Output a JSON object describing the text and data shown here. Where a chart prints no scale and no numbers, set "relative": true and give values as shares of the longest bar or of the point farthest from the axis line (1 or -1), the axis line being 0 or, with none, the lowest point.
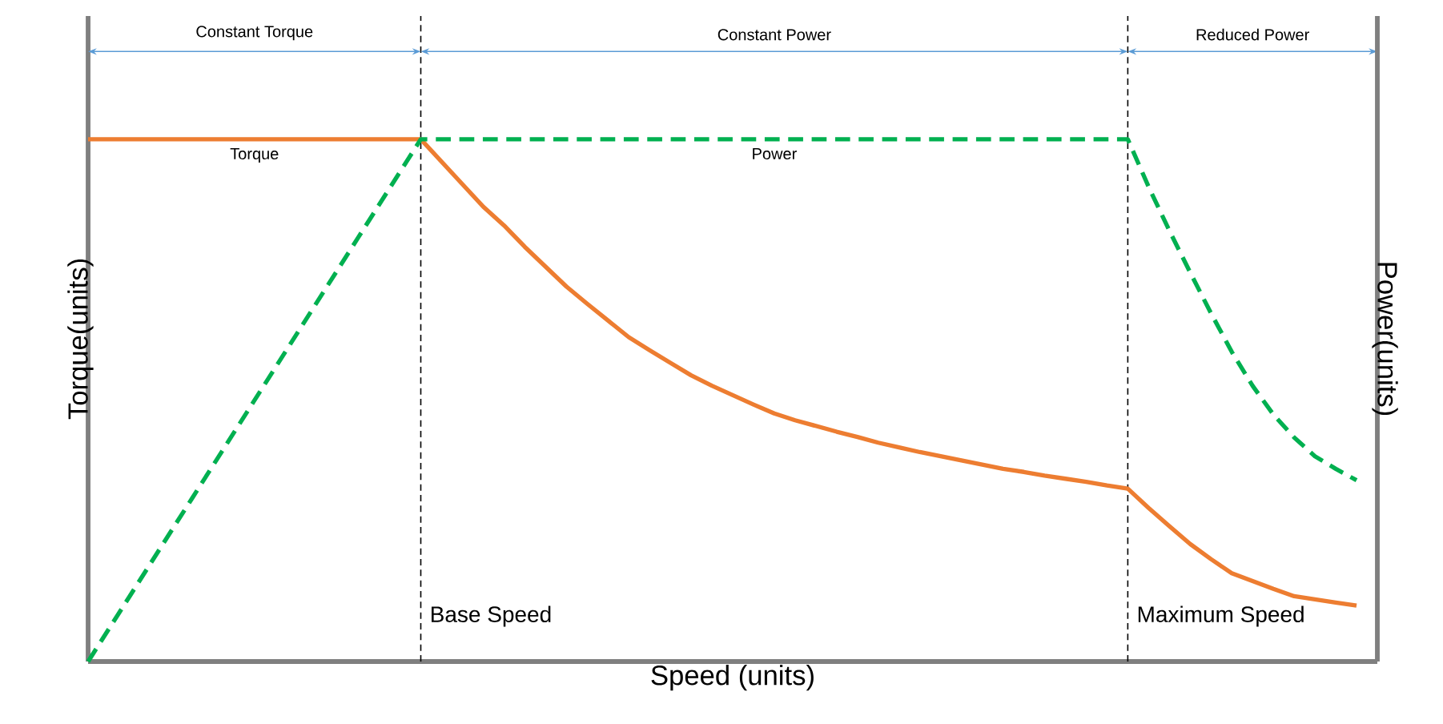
{
  "chart_data": {
    "type": "line",
    "xlabel": "Speed (units)",
    "ylabel": "Torque(units)",
    "y2label": "Power(units)",
    "relative": true,
    "marker": "none",
    "categories": [
      null,
      null,
      null,
      null,
      null,
      null,
      null,
      null,
      null,
      null,
      null,
      null,
      null,
      null,
      null,
      null,
      null,
      null,
      null,
      null,
      null,
      null,
      null,
      null,
      null,
      null,
      null,
      null,
      null,
      null,
      null,
      null,
      null,
      null,
      null,
      null,
      null,
      null,
      null,
      null,
      null,
      null,
      null,
      null,
      null,
      null,
      null,
      null,
      null,
      null,
      null,
      null,
      null,
      null,
      null,
      null,
      null,
      null,
      null,
      null,
      null,
      null,
      null
    ],
    "series": [
      {
        "name": "Torque",
        "color": "#ed7d31",
        "line_style": "solid",
        "values": [
          1,
          1,
          1,
          1,
          1,
          1,
          1,
          1,
          1,
          1,
          1,
          1,
          1,
          1,
          1,
          1,
          1,
          0.957,
          0.914,
          0.871,
          0.835,
          0.794,
          0.756,
          0.718,
          0.685,
          0.653,
          0.621,
          0.596,
          0.572,
          0.548,
          0.528,
          0.51,
          0.492,
          0.475,
          0.462,
          0.451,
          0.44,
          0.43,
          0.419,
          0.41,
          0.401,
          0.393,
          0.385,
          0.377,
          0.369,
          0.363,
          0.356,
          0.35,
          0.344,
          0.337,
          0.331,
          0.294,
          0.259,
          0.225,
          0.196,
          0.169,
          0.154,
          0.139,
          0.125,
          0.119,
          0.113,
          0.107,
          null
        ]
      },
      {
        "name": "Power",
        "color": "#00b050",
        "line_style": "dashed",
        "values": [
          0,
          0.0625,
          0.125,
          0.1875,
          0.25,
          0.3125,
          0.375,
          0.4375,
          0.5,
          0.5625,
          0.625,
          0.6875,
          0.75,
          0.8125,
          0.875,
          0.9375,
          1,
          1,
          1,
          1,
          1,
          1,
          1,
          1,
          1,
          1,
          1,
          1,
          1,
          1,
          1,
          1,
          1,
          1,
          1,
          1,
          1,
          1,
          1,
          1,
          1,
          1,
          1,
          1,
          1,
          1,
          1,
          1,
          1,
          1,
          1,
          0.909,
          0.825,
          0.745,
          0.667,
          0.593,
          0.528,
          0.473,
          0.429,
          0.393,
          0.369,
          0.347,
          null
        ]
      }
    ],
    "annotations": [
      "Constant Torque",
      "Constant Power",
      "Reduced Power",
      "Base Speed",
      "Maximum Speed"
    ]
  }
}
